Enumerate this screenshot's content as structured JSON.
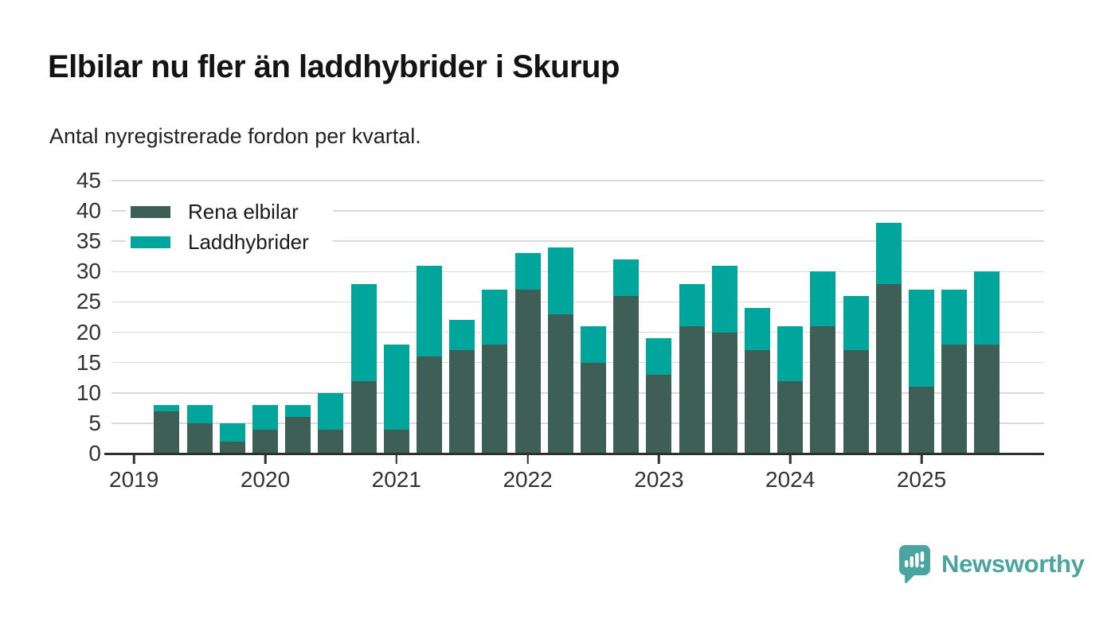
{
  "title": "Elbilar nu fler än laddhybrider i Skurup",
  "subtitle": "Antal nyregistrerade fordon per kvartal.",
  "colors": {
    "rena_elbilar": "#3d5f56",
    "laddhybrider": "#00a69b",
    "gridline": "#d9d9d9",
    "axis": "#2f2f2f",
    "tick_text": "#333333",
    "brand": "#4aa4a0"
  },
  "brand": {
    "name": "Newsworthy",
    "icon": "bar-chart-speech-bubble-icon"
  },
  "chart_data": {
    "type": "bar",
    "stacked": true,
    "title": "Elbilar nu fler än laddhybrider i Skurup",
    "subtitle": "Antal nyregistrerade fordon per kvartal.",
    "xlabel": "",
    "ylabel": "",
    "ylim": [
      0,
      45
    ],
    "y_ticks": [
      0,
      5,
      10,
      15,
      20,
      25,
      30,
      35,
      40,
      45
    ],
    "grid": "horizontal",
    "legend_position": "top-left",
    "categories": [
      "2019-Q1",
      "2019-Q2",
      "2019-Q3",
      "2019-Q4",
      "2020-Q1",
      "2020-Q2",
      "2020-Q3",
      "2020-Q4",
      "2021-Q1",
      "2021-Q2",
      "2021-Q3",
      "2021-Q4",
      "2022-Q1",
      "2022-Q2",
      "2022-Q3",
      "2022-Q4",
      "2023-Q1",
      "2023-Q2",
      "2023-Q3",
      "2023-Q4",
      "2024-Q1",
      "2024-Q2",
      "2024-Q3",
      "2024-Q4",
      "2025-Q1",
      "2025-Q2",
      "2025-Q3"
    ],
    "series": [
      {
        "name": "Rena elbilar",
        "color": "#3d5f56",
        "values": [
          0,
          7,
          5,
          2,
          4,
          6,
          4,
          12,
          4,
          16,
          17,
          18,
          27,
          23,
          15,
          26,
          13,
          21,
          20,
          17,
          12,
          21,
          17,
          28,
          11,
          18,
          18
        ]
      },
      {
        "name": "Laddhybrider",
        "color": "#00a69b",
        "values": [
          0,
          1,
          3,
          3,
          4,
          2,
          6,
          16,
          14,
          15,
          5,
          9,
          6,
          11,
          6,
          6,
          6,
          7,
          11,
          7,
          9,
          9,
          9,
          10,
          16,
          9,
          12
        ]
      }
    ],
    "x_tick_labels": [
      "2019",
      "2020",
      "2021",
      "2022",
      "2023",
      "2024",
      "2025"
    ],
    "x_tick_slots": [
      0,
      4,
      8,
      12,
      16,
      20,
      24
    ]
  }
}
